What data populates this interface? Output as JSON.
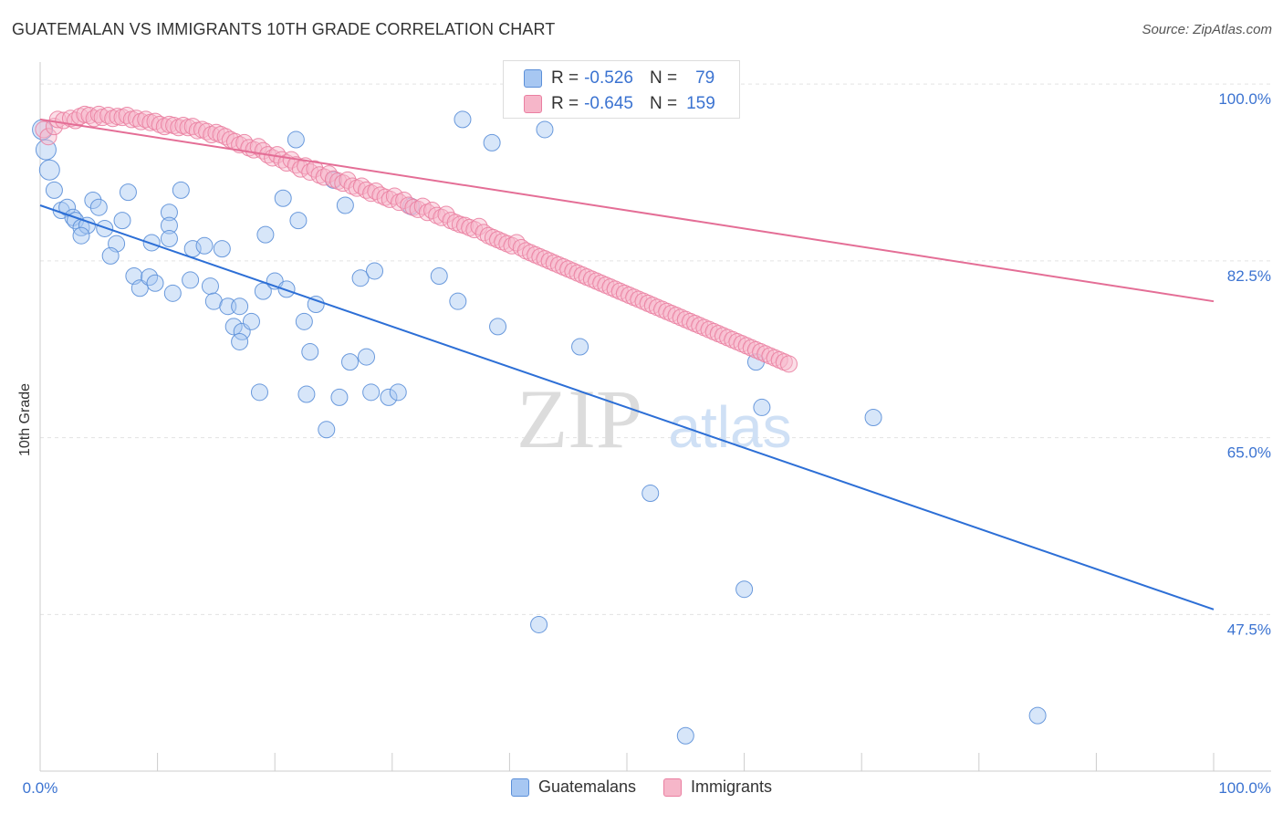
{
  "title": "GUATEMALAN VS IMMIGRANTS 10TH GRADE CORRELATION CHART",
  "source": "Source: ZipAtlas.com",
  "watermark": {
    "zip": "ZIP",
    "atlas": "atlas"
  },
  "legend_stats": [
    {
      "r_label": "R =",
      "r_value": "-0.526",
      "n_label": "N =",
      "n_value": "79",
      "color": "#a7c7f2"
    },
    {
      "r_label": "R =",
      "r_value": "-0.645",
      "n_label": "N =",
      "n_value": "159",
      "color": "#f6b6c9"
    }
  ],
  "legend_bottom": [
    {
      "label": "Guatemalans",
      "color": "#a7c7f2"
    },
    {
      "label": "Immigrants",
      "color": "#f6b6c9"
    }
  ],
  "chart_data": {
    "type": "scatter",
    "ylabel": "10th Grade",
    "xlim": [
      0,
      100
    ],
    "ylim": [
      32,
      102
    ],
    "x_tick_labels": [
      "0.0%",
      "100.0%"
    ],
    "y_ticks": [
      47.5,
      65.0,
      82.5,
      100.0
    ],
    "y_tick_labels": [
      "47.5%",
      "65.0%",
      "82.5%",
      "100.0%"
    ],
    "grid": true,
    "legend_position": "top-center",
    "series": [
      {
        "name": "Guatemalans",
        "color": "#5b8fd8",
        "fill": "#a7c7f2",
        "trend": {
          "x": [
            0,
            100
          ],
          "y": [
            88.0,
            48.0
          ],
          "color": "#2d6fd6"
        },
        "points": [
          [
            0.2,
            95.5
          ],
          [
            0.5,
            93.5
          ],
          [
            0.8,
            91.5
          ],
          [
            1.2,
            89.5
          ],
          [
            1.8,
            87.5
          ],
          [
            2.3,
            87.8
          ],
          [
            2.8,
            86.8
          ],
          [
            3.0,
            86.5
          ],
          [
            3.5,
            85.8
          ],
          [
            4.5,
            88.5
          ],
          [
            5.0,
            87.8
          ],
          [
            4.0,
            86.0
          ],
          [
            5.5,
            85.7
          ],
          [
            7.5,
            89.3
          ],
          [
            11.0,
            87.3
          ],
          [
            12.0,
            89.5
          ],
          [
            6.5,
            84.2
          ],
          [
            3.5,
            85.0
          ],
          [
            7.0,
            86.5
          ],
          [
            6.0,
            83.0
          ],
          [
            8.0,
            81.0
          ],
          [
            8.5,
            79.8
          ],
          [
            9.3,
            80.9
          ],
          [
            9.8,
            80.3
          ],
          [
            11.3,
            79.3
          ],
          [
            12.8,
            80.6
          ],
          [
            11.0,
            86.0
          ],
          [
            9.5,
            84.3
          ],
          [
            11.0,
            84.7
          ],
          [
            13.0,
            83.7
          ],
          [
            14.0,
            84.0
          ],
          [
            15.5,
            83.7
          ],
          [
            14.5,
            80.0
          ],
          [
            14.8,
            78.5
          ],
          [
            16.0,
            78.0
          ],
          [
            17.0,
            78.0
          ],
          [
            16.5,
            76.0
          ],
          [
            17.2,
            75.5
          ],
          [
            18.0,
            76.5
          ],
          [
            17.0,
            74.5
          ],
          [
            19.2,
            85.1
          ],
          [
            19.0,
            79.5
          ],
          [
            20.0,
            80.5
          ],
          [
            21.0,
            79.7
          ],
          [
            22.0,
            86.5
          ],
          [
            22.5,
            76.5
          ],
          [
            23.5,
            78.2
          ],
          [
            23.0,
            73.5
          ],
          [
            20.7,
            88.7
          ],
          [
            18.7,
            69.5
          ],
          [
            21.8,
            94.5
          ],
          [
            25.0,
            90.5
          ],
          [
            26.0,
            88.0
          ],
          [
            27.3,
            80.8
          ],
          [
            28.5,
            81.5
          ],
          [
            26.4,
            72.5
          ],
          [
            27.8,
            73.0
          ],
          [
            25.5,
            69.0
          ],
          [
            28.2,
            69.5
          ],
          [
            22.7,
            69.3
          ],
          [
            24.4,
            65.8
          ],
          [
            29.7,
            69.0
          ],
          [
            30.5,
            69.5
          ],
          [
            31.6,
            87.9
          ],
          [
            34.0,
            81.0
          ],
          [
            35.6,
            78.5
          ],
          [
            36.0,
            96.5
          ],
          [
            38.5,
            94.2
          ],
          [
            39.0,
            76.0
          ],
          [
            43.0,
            95.5
          ],
          [
            46.0,
            74.0
          ],
          [
            42.5,
            46.5
          ],
          [
            52.0,
            59.5
          ],
          [
            55.0,
            35.5
          ],
          [
            60.0,
            50.0
          ],
          [
            61.0,
            72.5
          ],
          [
            85.0,
            37.5
          ],
          [
            71.0,
            67.0
          ],
          [
            61.5,
            68.0
          ]
        ]
      },
      {
        "name": "Immigrants",
        "color": "#ea7fa1",
        "fill": "#f6b6c9",
        "trend": {
          "x": [
            0,
            100
          ],
          "y": [
            96.5,
            78.5
          ],
          "color": "#e46e96"
        },
        "points": [
          [
            0.3,
            95.5
          ],
          [
            0.7,
            94.8
          ],
          [
            1.2,
            95.8
          ],
          [
            1.5,
            96.5
          ],
          [
            2.0,
            96.4
          ],
          [
            2.6,
            96.6
          ],
          [
            3.0,
            96.4
          ],
          [
            3.4,
            96.8
          ],
          [
            3.8,
            97.0
          ],
          [
            4.2,
            96.9
          ],
          [
            4.6,
            96.6
          ],
          [
            5.0,
            97.0
          ],
          [
            5.3,
            96.7
          ],
          [
            5.8,
            96.9
          ],
          [
            6.2,
            96.6
          ],
          [
            6.6,
            96.8
          ],
          [
            7.0,
            96.7
          ],
          [
            7.4,
            96.9
          ],
          [
            7.8,
            96.5
          ],
          [
            8.2,
            96.6
          ],
          [
            8.6,
            96.3
          ],
          [
            9.0,
            96.5
          ],
          [
            9.4,
            96.2
          ],
          [
            9.8,
            96.3
          ],
          [
            10.2,
            96.0
          ],
          [
            10.6,
            95.8
          ],
          [
            11.0,
            96.0
          ],
          [
            11.4,
            95.9
          ],
          [
            11.8,
            95.7
          ],
          [
            12.2,
            95.9
          ],
          [
            12.6,
            95.7
          ],
          [
            13.0,
            95.8
          ],
          [
            13.4,
            95.4
          ],
          [
            13.8,
            95.5
          ],
          [
            14.2,
            95.3
          ],
          [
            14.6,
            95.0
          ],
          [
            15.0,
            95.2
          ],
          [
            15.4,
            95.0
          ],
          [
            15.8,
            94.8
          ],
          [
            16.2,
            94.5
          ],
          [
            16.6,
            94.3
          ],
          [
            17.0,
            94.0
          ],
          [
            17.4,
            94.2
          ],
          [
            17.8,
            93.7
          ],
          [
            18.2,
            93.5
          ],
          [
            18.6,
            93.8
          ],
          [
            19.0,
            93.4
          ],
          [
            19.4,
            93.0
          ],
          [
            19.8,
            92.7
          ],
          [
            20.2,
            93.0
          ],
          [
            20.6,
            92.5
          ],
          [
            21.0,
            92.2
          ],
          [
            21.4,
            92.5
          ],
          [
            21.8,
            92.0
          ],
          [
            22.2,
            91.6
          ],
          [
            22.6,
            91.9
          ],
          [
            23.0,
            91.3
          ],
          [
            23.4,
            91.6
          ],
          [
            23.8,
            91.0
          ],
          [
            24.2,
            90.8
          ],
          [
            24.6,
            91.1
          ],
          [
            25.0,
            90.6
          ],
          [
            25.4,
            90.4
          ],
          [
            25.8,
            90.2
          ],
          [
            26.2,
            90.5
          ],
          [
            26.6,
            89.9
          ],
          [
            27.0,
            89.7
          ],
          [
            27.4,
            89.9
          ],
          [
            27.8,
            89.5
          ],
          [
            28.2,
            89.2
          ],
          [
            28.6,
            89.4
          ],
          [
            29.0,
            89.0
          ],
          [
            29.4,
            88.8
          ],
          [
            29.8,
            88.6
          ],
          [
            30.2,
            88.9
          ],
          [
            30.6,
            88.3
          ],
          [
            31.0,
            88.5
          ],
          [
            31.4,
            88.0
          ],
          [
            31.8,
            87.8
          ],
          [
            32.2,
            87.6
          ],
          [
            32.6,
            87.9
          ],
          [
            33.0,
            87.3
          ],
          [
            33.4,
            87.5
          ],
          [
            33.8,
            87.0
          ],
          [
            34.2,
            86.8
          ],
          [
            34.6,
            87.1
          ],
          [
            35.0,
            86.5
          ],
          [
            35.4,
            86.3
          ],
          [
            35.8,
            86.1
          ],
          [
            36.2,
            86.0
          ],
          [
            36.6,
            85.8
          ],
          [
            37.0,
            85.6
          ],
          [
            37.4,
            85.9
          ],
          [
            37.8,
            85.3
          ],
          [
            38.2,
            85.0
          ],
          [
            38.6,
            84.8
          ],
          [
            39.0,
            84.6
          ],
          [
            39.4,
            84.4
          ],
          [
            39.8,
            84.2
          ],
          [
            40.2,
            84.0
          ],
          [
            40.6,
            84.3
          ],
          [
            41.0,
            83.8
          ],
          [
            41.4,
            83.5
          ],
          [
            41.8,
            83.3
          ],
          [
            42.2,
            83.1
          ],
          [
            42.6,
            82.9
          ],
          [
            43.0,
            82.7
          ],
          [
            43.4,
            82.5
          ],
          [
            43.8,
            82.3
          ],
          [
            44.2,
            82.1
          ],
          [
            44.6,
            81.9
          ],
          [
            45.0,
            81.7
          ],
          [
            45.4,
            81.5
          ],
          [
            45.8,
            81.3
          ],
          [
            46.2,
            81.1
          ],
          [
            46.6,
            80.9
          ],
          [
            47.0,
            80.7
          ],
          [
            47.4,
            80.5
          ],
          [
            47.8,
            80.3
          ],
          [
            48.2,
            80.1
          ],
          [
            48.6,
            79.9
          ],
          [
            49.0,
            79.7
          ],
          [
            49.4,
            79.5
          ],
          [
            49.8,
            79.3
          ],
          [
            50.2,
            79.1
          ],
          [
            50.6,
            78.9
          ],
          [
            51.0,
            78.7
          ],
          [
            51.4,
            78.5
          ],
          [
            51.8,
            78.3
          ],
          [
            52.2,
            78.1
          ],
          [
            52.6,
            77.9
          ],
          [
            53.0,
            77.7
          ],
          [
            53.4,
            77.5
          ],
          [
            53.8,
            77.3
          ],
          [
            54.2,
            77.1
          ],
          [
            54.6,
            76.9
          ],
          [
            55.0,
            76.7
          ],
          [
            55.4,
            76.5
          ],
          [
            55.8,
            76.3
          ],
          [
            56.2,
            76.1
          ],
          [
            56.6,
            75.9
          ],
          [
            57.0,
            75.7
          ],
          [
            57.4,
            75.5
          ],
          [
            57.8,
            75.3
          ],
          [
            58.2,
            75.1
          ],
          [
            58.6,
            74.9
          ],
          [
            59.0,
            74.7
          ],
          [
            59.4,
            74.5
          ],
          [
            59.8,
            74.3
          ],
          [
            60.2,
            74.1
          ],
          [
            60.6,
            73.9
          ],
          [
            61.0,
            73.7
          ],
          [
            61.4,
            73.5
          ],
          [
            61.8,
            73.3
          ],
          [
            62.2,
            73.1
          ],
          [
            62.6,
            72.9
          ],
          [
            63.0,
            72.7
          ],
          [
            63.4,
            72.5
          ],
          [
            63.8,
            72.3
          ]
        ]
      }
    ]
  }
}
